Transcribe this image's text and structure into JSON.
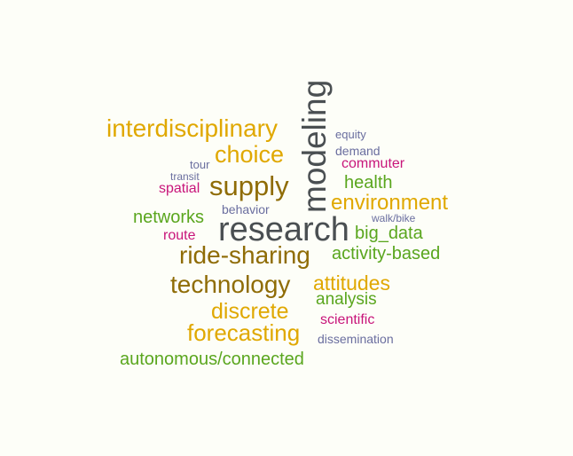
{
  "colors": {
    "background": "#FDFEF8",
    "dark_gray": "#4A4F52",
    "olive_brown": "#8F6C06",
    "gold": "#E0A800",
    "green": "#5AA61E",
    "magenta": "#C8157A",
    "slate_blue": "#6A6E9F"
  },
  "words": {
    "modeling": "modeling",
    "research": "research",
    "interdisciplinary": "interdisciplinary",
    "choice": "choice",
    "supply": "supply",
    "ride_sharing": "ride-sharing",
    "technology": "technology",
    "environment": "environment",
    "discrete": "discrete",
    "forecasting": "forecasting",
    "attitudes": "attitudes",
    "networks": "networks",
    "health": "health",
    "big_data": "big_data",
    "activity_based": "activity-based",
    "analysis": "analysis",
    "autonomous_connected": "autonomous/connected",
    "spatial": "spatial",
    "route": "route",
    "commuter": "commuter",
    "scientific": "scientific",
    "equity": "equity",
    "demand": "demand",
    "tour": "tour",
    "transit": "transit",
    "behavior": "behavior",
    "walk_bike": "walk/bike",
    "dissemination": "dissemination"
  }
}
